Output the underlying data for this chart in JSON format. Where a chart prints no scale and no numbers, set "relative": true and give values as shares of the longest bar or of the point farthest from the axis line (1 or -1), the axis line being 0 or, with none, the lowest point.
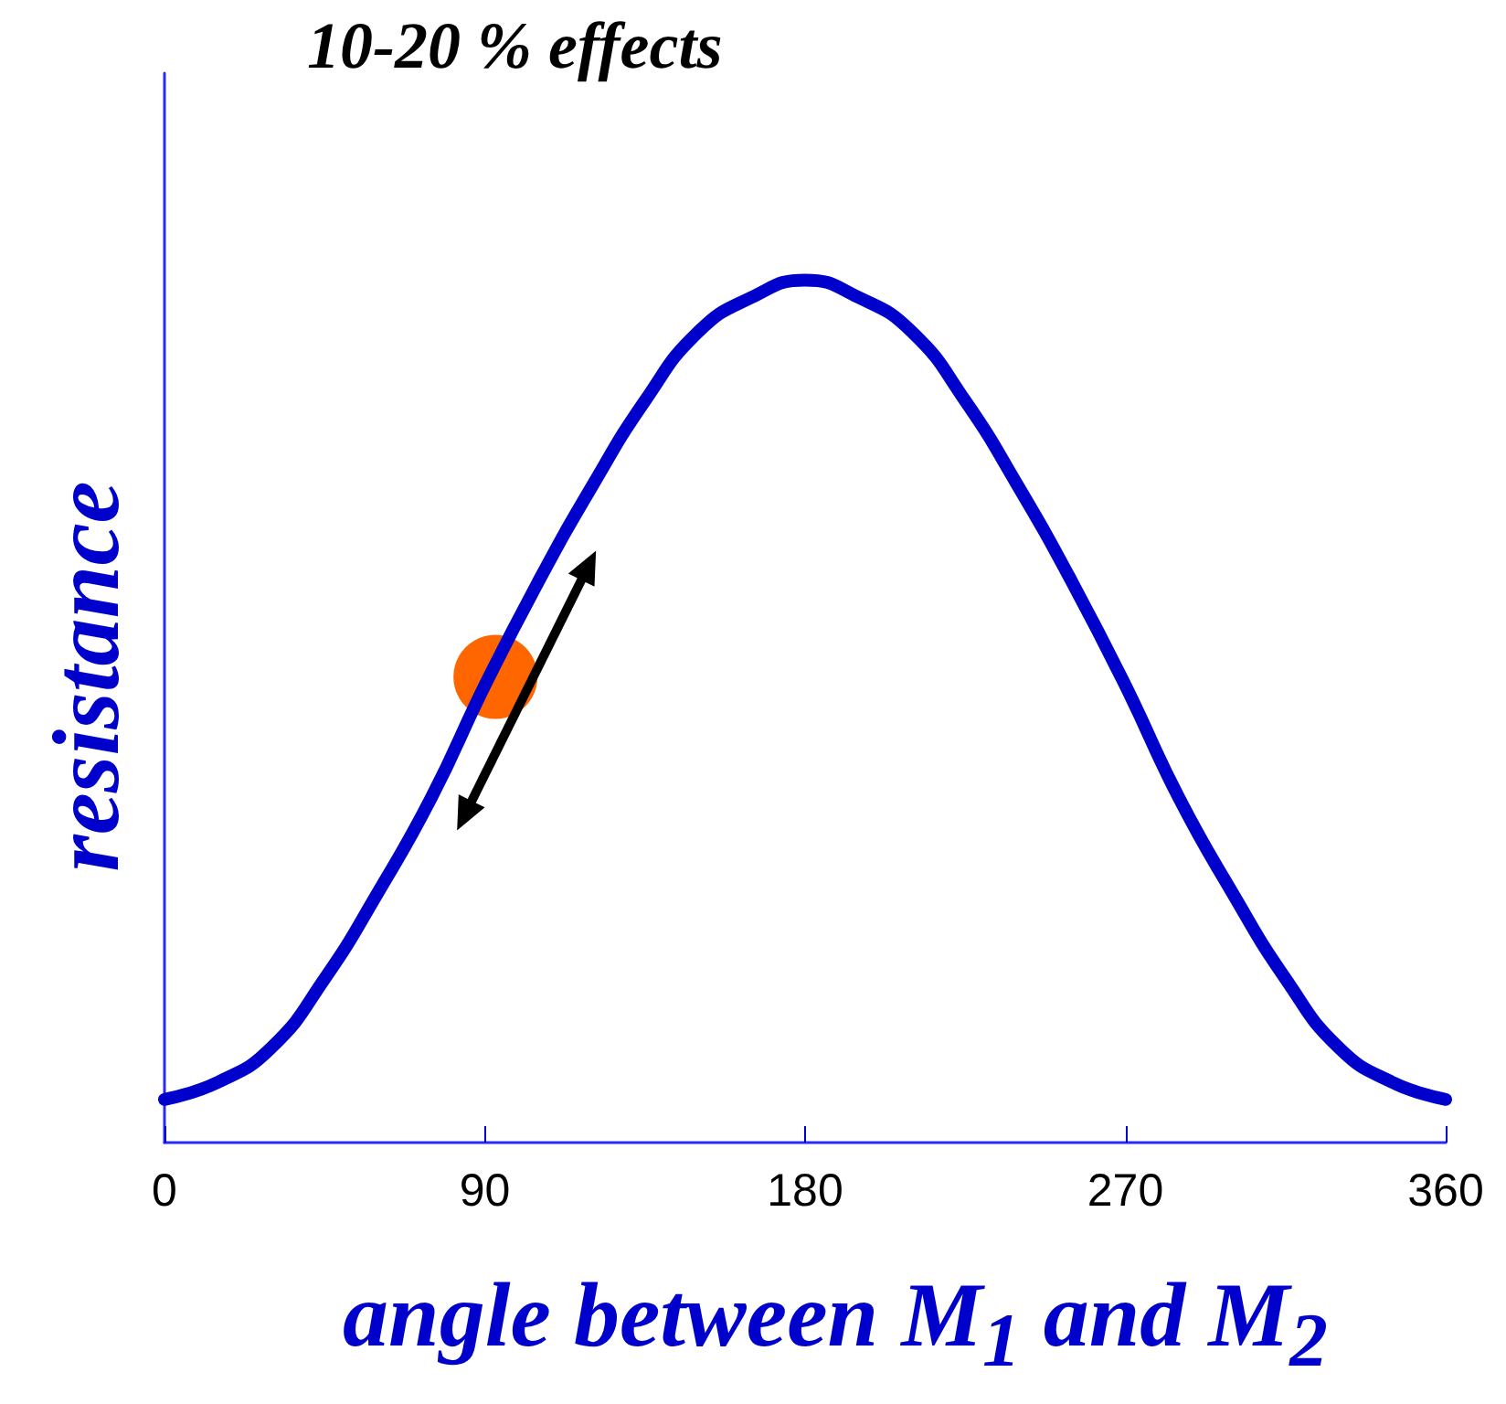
{
  "chart_data": {
    "type": "line",
    "title": "10-20 % effects",
    "xlabel": "angle between M$_{1}$ and M$_{2}$",
    "ylabel": "resistance",
    "relative": true,
    "xlim": [
      0,
      360
    ],
    "xticks": [
      0,
      90,
      180,
      270,
      360
    ],
    "grid": false,
    "series": [
      {
        "color": "#0000cc",
        "marker": "none",
        "x": [
          0,
          15,
          30,
          45,
          60,
          75,
          90,
          105,
          120,
          135,
          150,
          165,
          180,
          195,
          210,
          225,
          240,
          255,
          270,
          285,
          300,
          315,
          330,
          345,
          360
        ],
        "values": [
          0.05,
          0.07,
          0.11,
          0.19,
          0.29,
          0.4,
          0.53,
          0.65,
          0.76,
          0.86,
          0.94,
          0.98,
          1.0,
          0.98,
          0.94,
          0.86,
          0.76,
          0.65,
          0.53,
          0.4,
          0.29,
          0.19,
          0.11,
          0.07,
          0.05
        ]
      },
      {
        "type": "scatter",
        "color": "#ff6600",
        "marker": "circle",
        "x": [
          93
        ],
        "values": [
          0.54
        ]
      }
    ]
  }
}
